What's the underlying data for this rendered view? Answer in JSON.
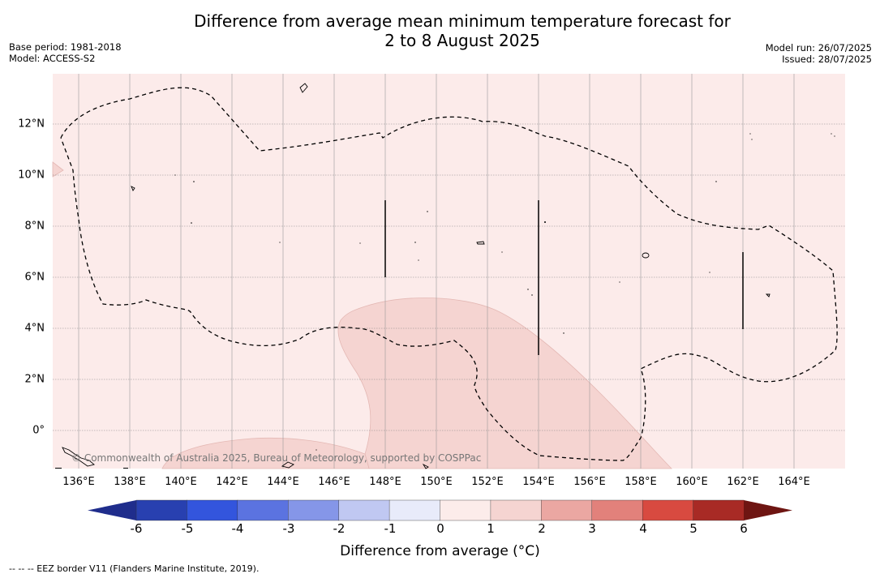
{
  "title_line1": "Difference from average mean minimum temperature forecast for",
  "title_line2": "2 to 8 August 2025",
  "base_period": "Base period: 1981-2018",
  "model": "Model: ACCESS-S2",
  "model_run": "Model run: 26/07/2025",
  "issued": "Issued: 28/07/2025",
  "x_ticks": [
    "136°E",
    "138°E",
    "140°E",
    "142°E",
    "144°E",
    "146°E",
    "148°E",
    "150°E",
    "152°E",
    "154°E",
    "156°E",
    "158°E",
    "160°E",
    "162°E",
    "164°E"
  ],
  "y_ticks": [
    "12°N",
    "10°N",
    "8°N",
    "6°N",
    "4°N",
    "2°N",
    "0°"
  ],
  "credit": "© Commonwealth of Australia 2025, Bureau of Meteorology, supported by COSPPac",
  "colorbar": {
    "labels": [
      "-6",
      "-5",
      "-4",
      "-3",
      "-2",
      "-1",
      "0",
      "1",
      "2",
      "3",
      "4",
      "5",
      "6"
    ],
    "colors": [
      "#1f2d8c",
      "#2840b0",
      "#3355dd",
      "#5b73e0",
      "#8596e8",
      "#c0c8f2",
      "#e8ebfa",
      "#fcecea",
      "#f5d4d1",
      "#eba7a2",
      "#e2817b",
      "#d84a40",
      "#a82a25",
      "#6e1512"
    ],
    "title": "Difference from average (°C)"
  },
  "footnote": "--  --  -- EEZ border V11 (Flanders Marine Institute, 2019).",
  "fill_colors": {
    "background": "#fcebea",
    "positive_1_2": "#f5d4d1"
  }
}
